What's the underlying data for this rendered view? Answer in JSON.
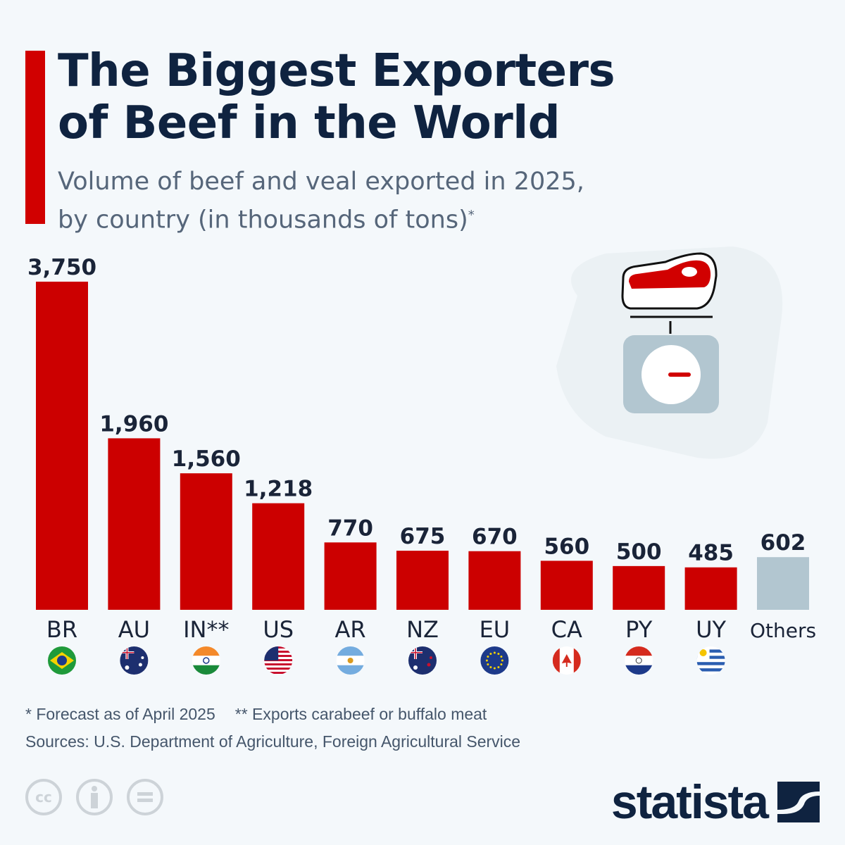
{
  "chart_data": {
    "type": "bar",
    "title": "The Biggest Exporters of Beef in the World",
    "subtitle": "Volume of beef and veal exported in 2025, by country (in thousands of tons)",
    "categories": [
      "BR",
      "AU",
      "IN**",
      "US",
      "AR",
      "NZ",
      "EU",
      "CA",
      "PY",
      "UY",
      "Others"
    ],
    "values": [
      3750,
      1960,
      1560,
      1218,
      770,
      675,
      670,
      560,
      500,
      485,
      602
    ],
    "value_labels": [
      "3,750",
      "1,960",
      "1,560",
      "1,218",
      "770",
      "675",
      "670",
      "560",
      "500",
      "485",
      "602"
    ],
    "flags": [
      "brazil-flag-icon",
      "australia-flag-icon",
      "india-flag-icon",
      "usa-flag-icon",
      "argentina-flag-icon",
      "new-zealand-flag-icon",
      "eu-flag-icon",
      "canada-flag-icon",
      "paraguay-flag-icon",
      "uruguay-flag-icon",
      null
    ],
    "colors": {
      "bar": "#cc0000",
      "others": "#b2c6d0"
    },
    "ylim": [
      0,
      3750
    ],
    "grid": false,
    "xlabel": "",
    "ylabel": ""
  },
  "header": {
    "title_line1": "The Biggest Exporters",
    "title_line2": "of Beef in the World",
    "subtitle_line1": "Volume of beef and veal exported in 2025,",
    "subtitle_line2": "by country (in thousands of tons)",
    "subtitle_mark": "*"
  },
  "footer": {
    "note1": "* Forecast as of April 2025",
    "note2": "** Exports carabeef or buffalo meat",
    "sources": "Sources: U.S. Department of Agriculture, Foreign Agricultural Service",
    "brand": "statista",
    "license_icons": [
      "cc-icon",
      "attribution-icon",
      "no-derivatives-icon"
    ],
    "cc_text": "cc"
  }
}
